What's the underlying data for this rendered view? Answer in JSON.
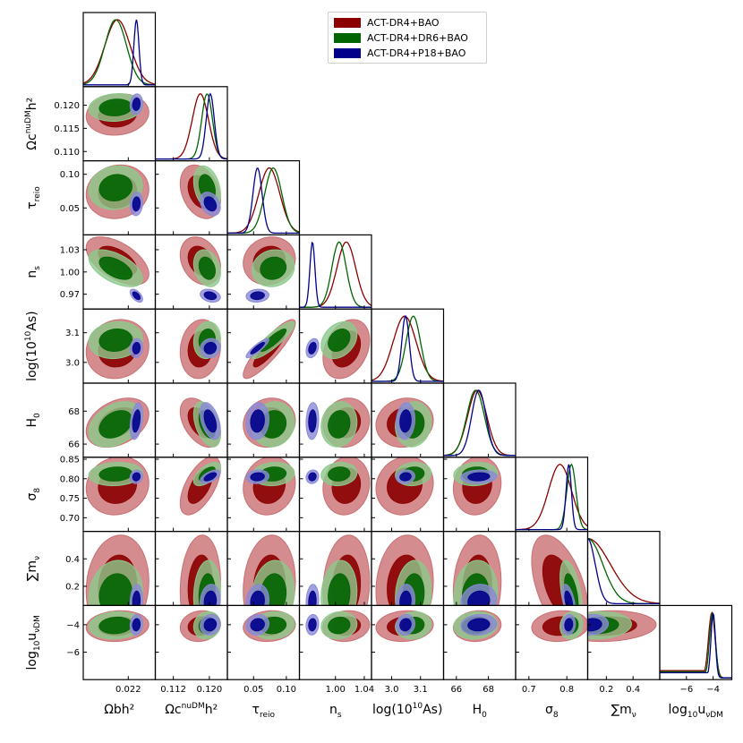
{
  "chart_data": {
    "type": "scatter",
    "subtype": "triangle-corner-plot",
    "parameters": [
      {
        "id": "omega_b",
        "label": "Ω_b h²",
        "base": "Ωbh²",
        "range": [
          0.0195,
          0.0235
        ],
        "ticks": [
          0.022
        ],
        "tick_labels": [
          "0.022"
        ]
      },
      {
        "id": "omega_cdm",
        "label": "Ω_c^nuDM h²",
        "base": "Ωc",
        "sup": "nuDM",
        "tail": "h²",
        "range": [
          0.108,
          0.124
        ],
        "ticks": [
          0.112,
          0.12
        ],
        "tick_labels": [
          "0.112",
          "0.120"
        ],
        "y_ticks": [
          0.11,
          0.115,
          0.12
        ],
        "y_tick_labels": [
          "0.110",
          "0.115",
          "0.120"
        ]
      },
      {
        "id": "tau_reio",
        "label": "τ_reio",
        "base": "τ",
        "sub": "reio",
        "range": [
          0.01,
          0.12
        ],
        "ticks": [
          0.05,
          0.1
        ],
        "tick_labels": [
          "0.05",
          "0.10"
        ]
      },
      {
        "id": "n_s",
        "label": "n_s",
        "base": "n",
        "sub": "s",
        "range": [
          0.95,
          1.05
        ],
        "ticks": [
          1.0,
          1.04
        ],
        "tick_labels": [
          "1.00",
          "1.04"
        ],
        "y_ticks": [
          0.97,
          1.0,
          1.03
        ],
        "y_tick_labels": [
          "0.97",
          "1.00",
          "1.03"
        ]
      },
      {
        "id": "logA",
        "label": "log(10¹⁰A_s)",
        "base": "log(10",
        "sup": "10",
        "tail": "As)",
        "range": [
          2.93,
          3.18
        ],
        "ticks": [
          3.0,
          3.1
        ],
        "tick_labels": [
          "3.0",
          "3.1"
        ]
      },
      {
        "id": "H0",
        "label": "H_0",
        "base": "H",
        "sub": "0",
        "range": [
          65.2,
          69.7
        ],
        "ticks": [
          66,
          68
        ],
        "tick_labels": [
          "66",
          "68"
        ],
        "y_ticks": [
          66,
          68
        ],
        "y_tick_labels": [
          "66",
          "68"
        ]
      },
      {
        "id": "sigma8",
        "label": "σ_8",
        "base": "σ",
        "sub": "8",
        "range": [
          0.665,
          0.855
        ],
        "ticks": [
          0.7,
          0.8
        ],
        "tick_labels": [
          "0.7",
          "0.8"
        ],
        "y_ticks": [
          0.7,
          0.75,
          0.8,
          0.85
        ],
        "y_tick_labels": [
          "0.70",
          "0.75",
          "0.80",
          "0.85"
        ]
      },
      {
        "id": "sum_mnu",
        "label": "∑m_ν",
        "base": "∑m",
        "sub": "ν",
        "range": [
          0.06,
          0.6
        ],
        "ticks": [
          0.2,
          0.4
        ],
        "tick_labels": [
          "0.2",
          "0.4"
        ]
      },
      {
        "id": "log_u",
        "label": "log10 u_νDM",
        "base": "log",
        "sub": "10",
        "tail": "u",
        "sub2": "νDM",
        "range": [
          -8.0,
          -2.6
        ],
        "ticks": [
          -6,
          -4
        ],
        "tick_labels": [
          "−6",
          "−4"
        ]
      }
    ],
    "series": [
      {
        "name": "ACT-DR4+BAO",
        "color": "#8b0000",
        "light": "#c96f72",
        "mean": [
          0.0214,
          0.118,
          0.074,
          1.015,
          3.045,
          67.3,
          0.782,
          0.2,
          -4.1
        ],
        "sigma": [
          0.0007,
          0.0018,
          0.016,
          0.013,
          0.04,
          0.6,
          0.03,
          0.15,
          0.45
        ]
      },
      {
        "name": "ACT-DR4+DR6+BAO",
        "color": "#006400",
        "light": "#8cc98c",
        "mean": [
          0.0213,
          0.1195,
          0.08,
          1.005,
          3.075,
          67.2,
          0.812,
          0.14,
          -4.05
        ],
        "sigma": [
          0.0006,
          0.0012,
          0.013,
          0.01,
          0.025,
          0.55,
          0.012,
          0.1,
          0.4
        ]
      },
      {
        "name": "ACT-DR4+P18+BAO",
        "color": "#00008b",
        "light": "#8a8ad6",
        "mean": [
          0.02245,
          0.1202,
          0.056,
          0.968,
          3.048,
          67.4,
          0.805,
          0.09,
          -4.0
        ],
        "sigma": [
          0.00014,
          0.0009,
          0.007,
          0.0035,
          0.013,
          0.45,
          0.007,
          0.05,
          0.3
        ]
      }
    ],
    "legend_position": "top-right",
    "grid": false,
    "tick_direction": "in"
  }
}
